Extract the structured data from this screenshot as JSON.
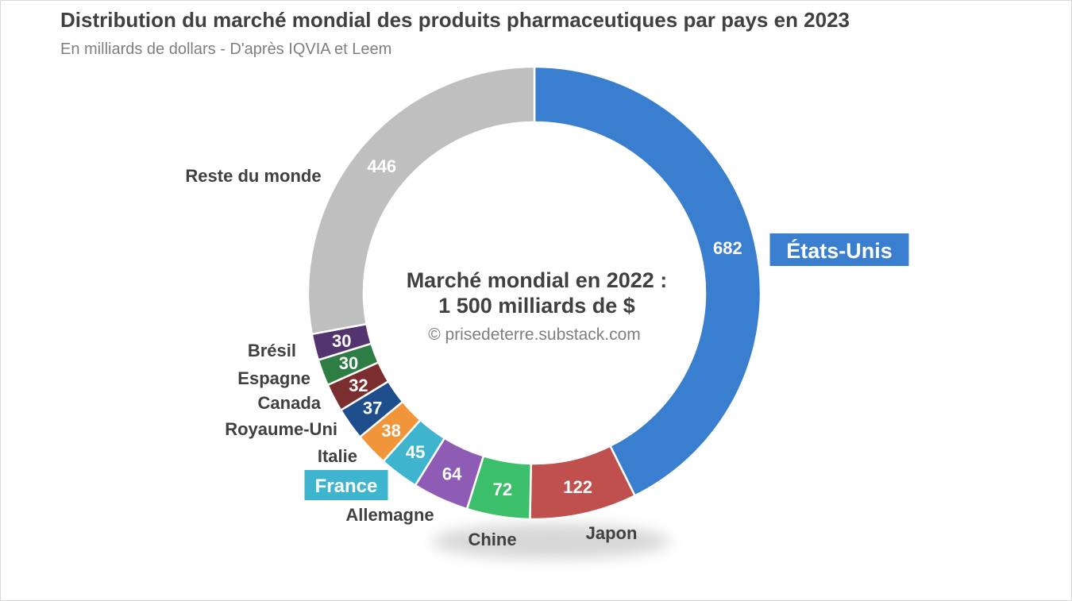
{
  "chart_data": {
    "type": "pie",
    "subtype": "donut",
    "title": "Distribution du marché mondial des produits pharmaceutiques par pays en 2023",
    "subtitle": "En milliards de dollars - D'après IQVIA et Leem",
    "center_line1": "Marché mondial en 2022 :",
    "center_line2": "1 500 milliards de $",
    "credit": "© prisedeterre.substack.com",
    "categories": [
      "États-Unis",
      "Japon",
      "Chine",
      "Allemagne",
      "France",
      "Italie",
      "Royaume-Uni",
      "Canada",
      "Espagne",
      "Brésil",
      "Reste du monde"
    ],
    "values": [
      682,
      122,
      72,
      64,
      45,
      38,
      37,
      32,
      30,
      30,
      446
    ],
    "value_labels": [
      "682",
      "122",
      "72",
      "64",
      "45",
      "38",
      "37",
      "32",
      "30",
      "30",
      "446"
    ],
    "colors": [
      "#3a7ecf",
      "#c0504d",
      "#3cbf6a",
      "#8e5cb5",
      "#3fb4cf",
      "#f0953a",
      "#1f4e8c",
      "#7a2e2e",
      "#2e7d45",
      "#54346e",
      "#bfbfbf"
    ],
    "highlight": {
      "États-Unis": "#3a7ecf",
      "France": "#3fb4cf"
    },
    "unit": "milliards de dollars"
  }
}
